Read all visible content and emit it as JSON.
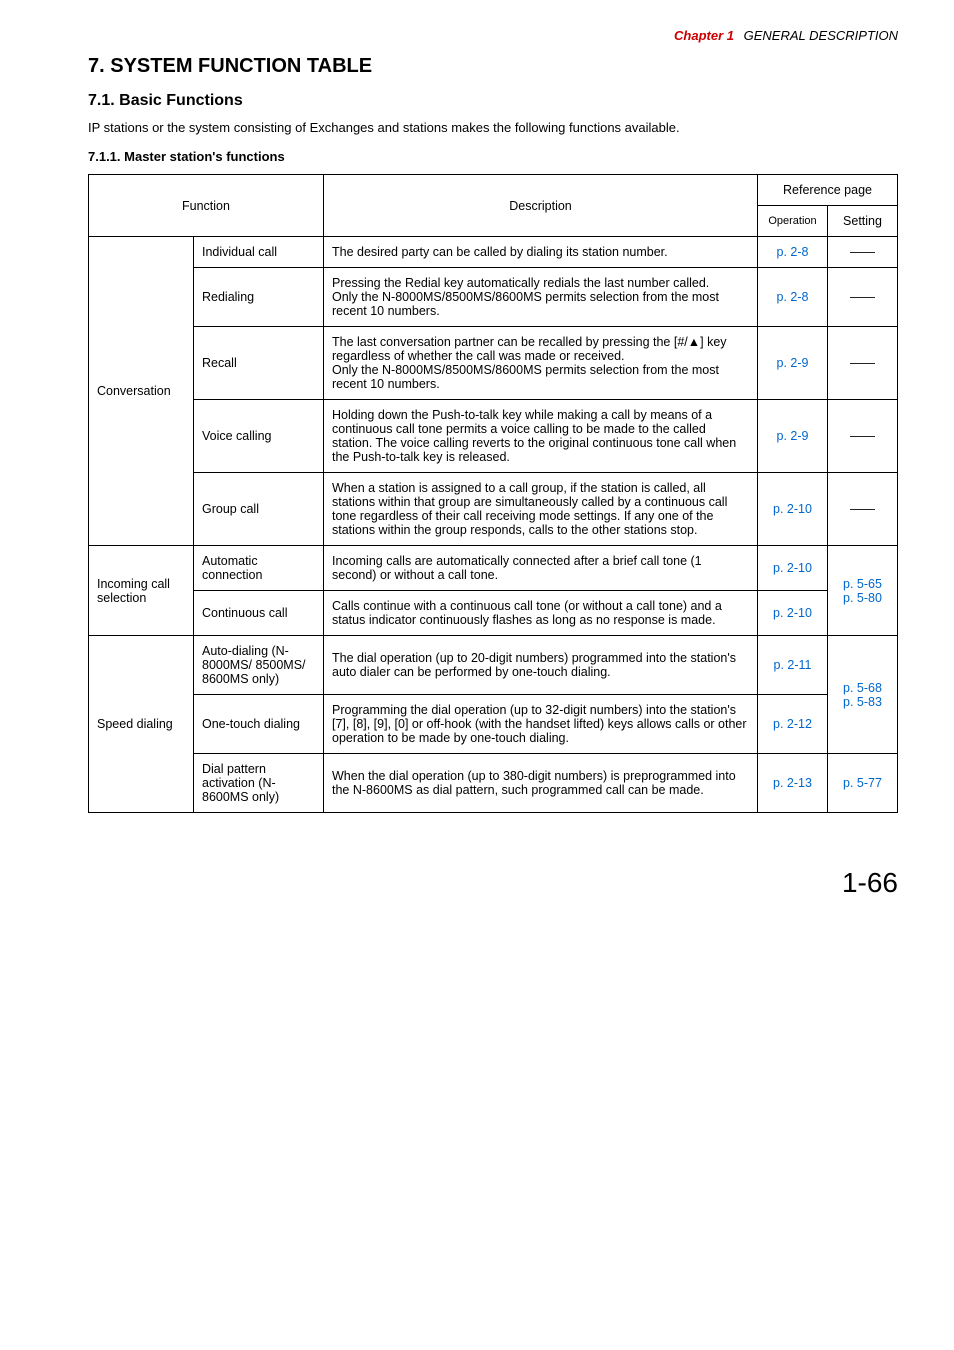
{
  "running_head": {
    "chapter": "Chapter 1",
    "title": "GENERAL DESCRIPTION"
  },
  "headings": {
    "section": "7. SYSTEM FUNCTION TABLE",
    "subsection": "7.1. Basic Functions",
    "intro": "IP stations or the system consisting of Exchanges and stations makes the following functions available.",
    "subsub": "7.1.1. Master station's functions"
  },
  "table": {
    "headers": {
      "function": "Function",
      "description": "Description",
      "reference": "Reference page",
      "operation": "Operation",
      "setting": "Setting"
    },
    "groups": [
      {
        "group": "Conversation",
        "rows": [
          {
            "name": "Individual call",
            "desc": "The desired party can be called by dialing its station number.",
            "op": "p. 2-8",
            "set_dash": true
          },
          {
            "name": "Redialing",
            "desc": "Pressing the Redial key automatically redials the last number called.\nOnly the N-8000MS/8500MS/8600MS permits selection from the most recent 10 numbers.",
            "op": "p. 2-8",
            "set_dash": true
          },
          {
            "name": "Recall",
            "desc": "The last conversation partner can be recalled by pressing the [#/▲] key regardless of whether the call was made or received.\nOnly the N-8000MS/8500MS/8600MS permits selection from the most recent 10 numbers.",
            "op": "p. 2-9",
            "set_dash": true
          },
          {
            "name": "Voice calling",
            "desc": "Holding down the Push-to-talk key while making a call by means of a continuous call tone permits a voice calling to be made to the called station. The voice calling reverts to the original continuous tone call when the Push-to-talk key is released.",
            "op": "p. 2-9",
            "set_dash": true
          },
          {
            "name": "Group call",
            "desc": "When a station is assigned to a call group, if the station is called, all stations within that group are simultaneously called by a continuous call tone regardless of their call receiving mode settings. If any one of the stations within the group responds, calls to the other stations stop.",
            "op": "p. 2-10",
            "set_dash": true
          }
        ]
      },
      {
        "group": "Incoming call selection",
        "rows": [
          {
            "name": "Automatic connection",
            "desc": "Incoming calls are automatically connected after a brief call tone (1 second) or without a call tone.",
            "op": "p. 2-10"
          },
          {
            "name": "Continuous call",
            "desc": "Calls continue with a continuous call tone (or without a call tone) and a status indicator continuously flashes as long as no response is made.",
            "op": "p. 2-10"
          }
        ],
        "group_setting": "p. 5-65\np. 5-80"
      },
      {
        "group": "Speed dialing",
        "rows": [
          {
            "name": "Auto-dialing (N-8000MS/ 8500MS/ 8600MS only)",
            "desc": "The dial operation (up to 20-digit numbers) programmed into the station's auto dialer can be performed by one-touch dialing.",
            "op": "p. 2-11"
          },
          {
            "name": "One-touch dialing",
            "desc": "Programming the dial operation (up to 32-digit numbers) into the station's [7], [8], [9], [0] or off-hook (with the handset lifted) keys allows calls or other operation to be made by one-touch dialing.",
            "op": "p. 2-12"
          },
          {
            "name": "Dial pattern activation (N-8600MS only)",
            "desc": "When the dial operation (up to 380-digit numbers) is preprogrammed into the N-8600MS as dial pattern, such programmed call can be made.",
            "op": "p. 2-13",
            "set": "p. 5-77"
          }
        ],
        "group_setting_partial": "p. 5-68\np. 5-83"
      }
    ]
  },
  "dash": "——",
  "page_number": "1-66"
}
